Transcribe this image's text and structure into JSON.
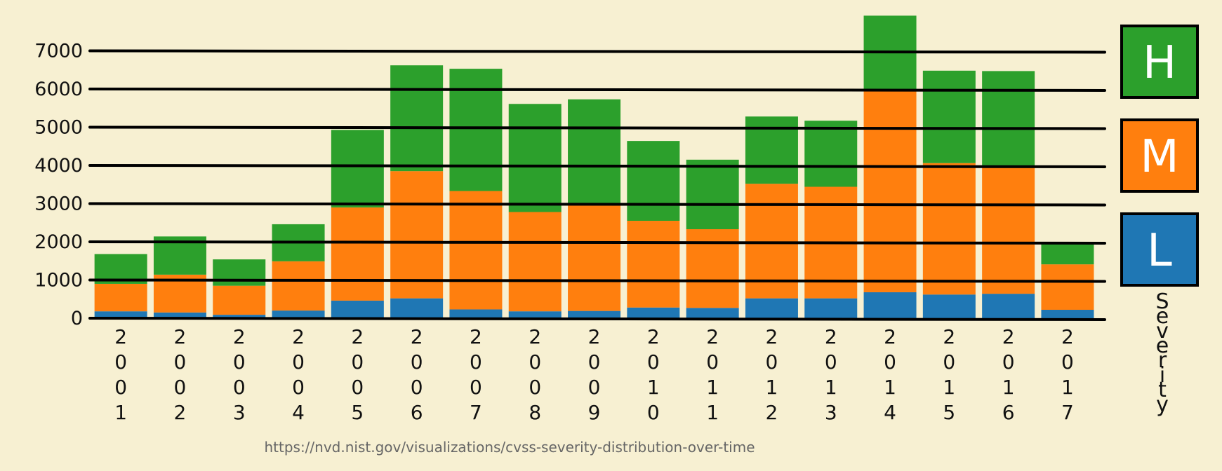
{
  "chart_data": {
    "type": "bar",
    "stacked": true,
    "categories": [
      "2001",
      "2002",
      "2003",
      "2004",
      "2005",
      "2006",
      "2007",
      "2008",
      "2009",
      "2010",
      "2011",
      "2012",
      "2013",
      "2014",
      "2015",
      "2016",
      "2017"
    ],
    "series": [
      {
        "name": "L",
        "color": "#1f77b4",
        "values": [
          180,
          150,
          90,
          200,
          460,
          520,
          230,
          180,
          190,
          280,
          270,
          520,
          520,
          680,
          620,
          640,
          220
        ]
      },
      {
        "name": "M",
        "color": "#ff7f0e",
        "values": [
          720,
          990,
          760,
          1290,
          2440,
          3330,
          3100,
          2600,
          2780,
          2270,
          2060,
          3000,
          2920,
          5300,
          3440,
          3360,
          1190
        ]
      },
      {
        "name": "H",
        "color": "#2ca02c",
        "values": [
          780,
          1000,
          690,
          970,
          2030,
          2770,
          3200,
          2830,
          2760,
          2090,
          1820,
          1760,
          1730,
          1940,
          2420,
          2470,
          570
        ]
      }
    ],
    "yticks": [
      "0",
      "1000",
      "2000",
      "3000",
      "4000",
      "5000",
      "6000",
      "7000"
    ],
    "ylim": [
      0,
      8000
    ],
    "grid": true,
    "legend": {
      "title": "Severity",
      "placement": "right"
    },
    "title": "",
    "xlabel": "",
    "ylabel": ""
  },
  "source_text": "https://nvd.nist.gov/visualizations/cvss-severity-distribution-over-time"
}
